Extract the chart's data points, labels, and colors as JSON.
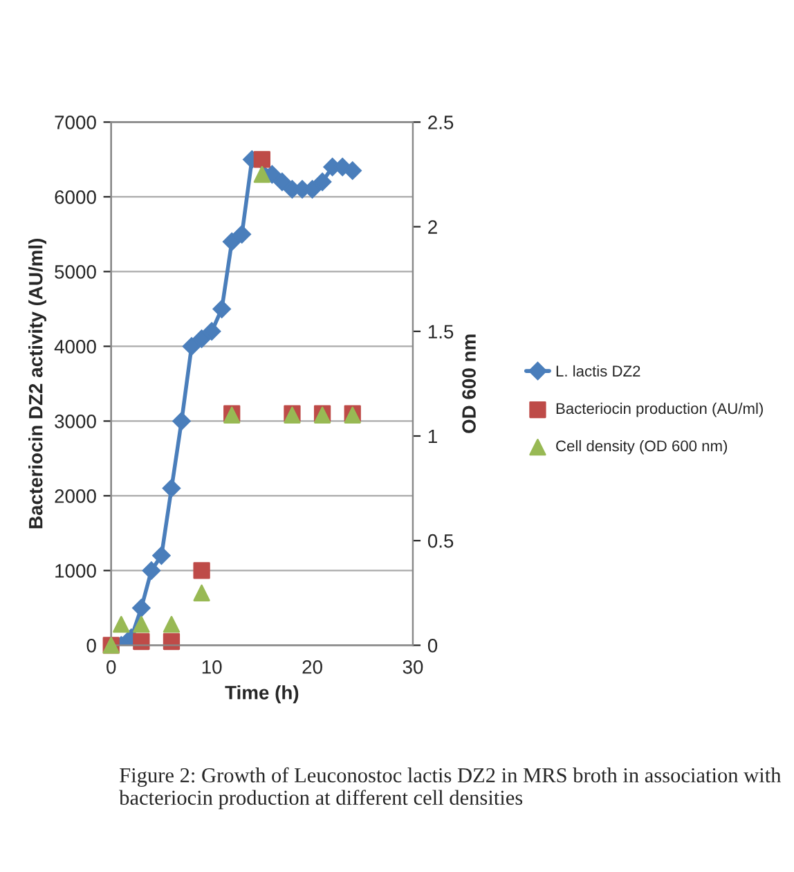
{
  "chart_data": {
    "type": "line",
    "xlabel": "Time (h)",
    "ylabel": "Bacteriocin DZ2 activity (AU/ml)",
    "y2label": "OD 600 nm",
    "series": [
      {
        "name": "L. lactis DZ2",
        "marker": "diamond",
        "color": "#4a7ebb",
        "x": [
          1,
          2,
          3,
          4,
          5,
          6,
          7,
          8,
          9,
          10,
          11,
          12,
          13,
          14,
          16,
          17,
          18,
          19,
          20,
          21,
          22,
          23,
          24
        ],
        "values": [
          0,
          100,
          500,
          1000,
          1200,
          2100,
          3000,
          4000,
          4100,
          4200,
          4500,
          5400,
          5500,
          6500,
          6300,
          6200,
          6100,
          6100,
          6100,
          6200,
          6400,
          6400,
          6350
        ]
      },
      {
        "name": "Bacteriocin production (AU/ml)",
        "type": "scatter",
        "marker": "square",
        "color": "#be4b48",
        "x": [
          0,
          3,
          6,
          9,
          12,
          15,
          18,
          21,
          24
        ],
        "values": [
          0,
          50,
          50,
          1000,
          3100,
          6500,
          3100,
          3100,
          3100
        ]
      },
      {
        "name": "Cell density (OD 600 nm)",
        "type": "scatter",
        "marker": "triangle",
        "axis": "y2",
        "color": "#98b954",
        "x": [
          0,
          1,
          3,
          6,
          9,
          12,
          15,
          18,
          21,
          24
        ],
        "values": [
          0,
          0.1,
          0.1,
          0.1,
          0.25,
          1.1,
          2.25,
          1.1,
          1.1,
          1.1
        ]
      }
    ],
    "xlim": [
      0,
      30
    ],
    "xticks": [
      0,
      10,
      20,
      30
    ],
    "ylim": [
      0,
      7000
    ],
    "yticks": [
      0,
      1000,
      2000,
      3000,
      4000,
      5000,
      6000,
      7000
    ],
    "y2lim": [
      0,
      2.5
    ],
    "y2ticks": [
      0,
      0.5,
      1,
      1.5,
      2,
      2.5
    ],
    "grid": "y",
    "legend": "right",
    "annotations": [
      "Figure 2: Growth of Leuconostoc lactis DZ2 in MRS broth in association with bacteriocin production at different cell densities"
    ]
  }
}
